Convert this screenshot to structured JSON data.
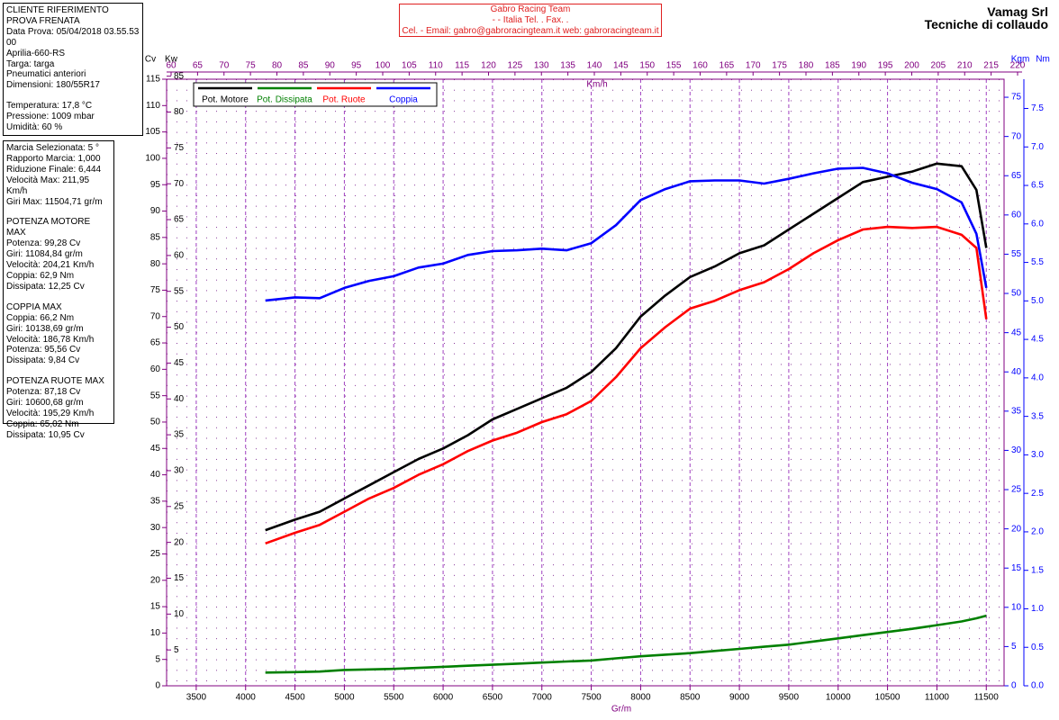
{
  "header": {
    "lines": [
      "Gabro Racing Team",
      "-  -  Italia Tel. . Fax. .",
      "Cel.  - Email: gabro@gabroracingteam.it web: gabroracingteam.it"
    ]
  },
  "brand": {
    "name": "Vamag Srl",
    "subtitle": "Tecniche di collaudo"
  },
  "info_panels": [
    [
      [
        "CLIENTE RIFERIMENTO",
        "PROVA FRENATA",
        "Data Prova: 05/04/2018 03.55.53",
        "00",
        "Aprilia-660-RS",
        "Targa:  targa",
        "Pneumatici anteriori",
        "Dimensioni: 180/55R17"
      ],
      [
        "Temperatura: 17,8 °C",
        "Pressione: 1009 mbar",
        "Umidità: 60 %"
      ]
    ],
    [
      [
        "Marcia Selezionata: 5 °",
        "Rapporto Marcia: 1,000",
        "Riduzione Finale: 6,444",
        "Velocità Max: 211,95 Km/h",
        "Giri Max: 11504,71 gr/m"
      ],
      [
        "POTENZA MOTORE MAX",
        "Potenza: 99,28 Cv",
        "Giri: 11084,84 gr/m",
        "Velocità: 204,21 Km/h",
        "Coppia: 62,9 Nm",
        "Dissipata: 12,25 Cv"
      ],
      [
        "COPPIA MAX",
        "Coppia: 66,2 Nm",
        "Giri: 10138,69 gr/m",
        "Velocità: 186,78 Km/h",
        "Potenza: 95,56 Cv",
        "Dissipata: 9,84 Cv"
      ],
      [
        "POTENZA RUOTE MAX",
        "Potenza: 87,18 Cv",
        "Giri: 10600,68 gr/m",
        "Velocità: 195,29 Km/h",
        "Coppia: 65,02 Nm",
        "Dissipata: 10,95 Cv"
      ]
    ]
  ],
  "chart_data": {
    "type": "line",
    "x_label": "Gr/m",
    "y_label": "Cv",
    "y2_label": "Nm",
    "grid": true,
    "x": [
      4200,
      4500,
      4750,
      5000,
      5250,
      5500,
      5750,
      6000,
      6250,
      6500,
      6750,
      7000,
      7250,
      7500,
      7750,
      8000,
      8250,
      8500,
      8750,
      9000,
      9250,
      9500,
      9750,
      10000,
      10250,
      10500,
      10750,
      11000,
      11250,
      11400,
      11500
    ],
    "xlim": [
      3200,
      11680
    ],
    "xticks": [
      3500,
      4000,
      4500,
      5000,
      5500,
      6000,
      6500,
      7000,
      7500,
      8000,
      8500,
      9000,
      9500,
      10000,
      10500,
      11000,
      11500
    ],
    "ylim": [
      0,
      115
    ],
    "yticks": [
      0,
      5,
      10,
      15,
      20,
      25,
      30,
      35,
      40,
      45,
      50,
      55,
      60,
      65,
      70,
      75,
      80,
      85,
      90,
      95,
      100,
      105,
      110,
      115
    ],
    "y2lim": [
      0,
      77.3
    ],
    "y2ticks": [
      0,
      5,
      10,
      15,
      20,
      25,
      30,
      35,
      40,
      45,
      50,
      55,
      60,
      65,
      70,
      75
    ],
    "kw_axis": {
      "label": "Kw",
      "lim": [
        0,
        84.58
      ],
      "ticks": [
        5,
        10,
        15,
        20,
        25,
        30,
        35,
        40,
        45,
        50,
        55,
        60,
        65,
        70,
        75,
        80,
        85
      ]
    },
    "kgm_axis": {
      "label": "Kgm",
      "lim": [
        0,
        7.88
      ],
      "ticks": [
        {
          "value": 0,
          "label": "0.0"
        },
        0.5,
        {
          "value": 1,
          "label": "1.0"
        },
        1.5,
        {
          "value": 2,
          "label": "2.0"
        },
        2.5,
        {
          "value": 3,
          "label": "3.0"
        },
        3.5,
        {
          "value": 4,
          "label": "4.0"
        },
        4.5,
        {
          "value": 5,
          "label": "5.0"
        },
        5.5,
        {
          "value": 6,
          "label": "6.0"
        },
        6.5,
        {
          "value": 7,
          "label": "7.0"
        },
        7.5
      ]
    },
    "kmh_axis": {
      "label": "Km/h",
      "lim": [
        60,
        220
      ],
      "ticks": [
        60,
        65,
        70,
        75,
        80,
        85,
        90,
        95,
        100,
        105,
        110,
        115,
        120,
        125,
        130,
        135,
        140,
        145,
        150,
        155,
        160,
        165,
        170,
        175,
        180,
        185,
        190,
        195,
        200,
        205,
        210,
        215,
        220
      ]
    },
    "series": [
      {
        "name": "Pot. Motore",
        "color": "#000000",
        "axis": "y",
        "values": [
          29.5,
          31.5,
          33,
          35.5,
          38,
          40.5,
          43,
          45,
          47.5,
          50.5,
          52.5,
          54.5,
          56.5,
          59.5,
          64,
          70,
          74,
          77.5,
          79.5,
          82,
          83.5,
          86.5,
          89.5,
          92.5,
          95.5,
          96.5,
          97.5,
          99,
          98.5,
          94,
          83
        ]
      },
      {
        "name": "Pot. Dissipata",
        "color": "#008000",
        "axis": "y",
        "values": [
          2.5,
          2.6,
          2.7,
          3.0,
          3.1,
          3.2,
          3.4,
          3.6,
          3.8,
          4.0,
          4.2,
          4.4,
          4.6,
          4.8,
          5.2,
          5.6,
          5.9,
          6.2,
          6.6,
          7.0,
          7.4,
          7.8,
          8.4,
          9.0,
          9.6,
          10.2,
          10.8,
          11.5,
          12.2,
          12.8,
          13.3
        ]
      },
      {
        "name": "Pot. Ruote",
        "color": "#ff0000",
        "axis": "y",
        "values": [
          27,
          29,
          30.5,
          33,
          35.5,
          37.5,
          40,
          42,
          44.5,
          46.5,
          48,
          50,
          51.5,
          54,
          58.5,
          64,
          68,
          71.5,
          73,
          75,
          76.5,
          79,
          82,
          84.5,
          86.5,
          87,
          86.8,
          87,
          85.5,
          83,
          69.5
        ]
      },
      {
        "name": "Coppia",
        "color": "#0000ff",
        "axis": "y2",
        "values": [
          49.1,
          49.5,
          49.4,
          50.7,
          51.6,
          52.2,
          53.3,
          53.8,
          54.9,
          55.4,
          55.5,
          55.7,
          55.5,
          56.4,
          58.7,
          61.9,
          63.3,
          64.3,
          64.4,
          64.4,
          64.0,
          64.6,
          65.3,
          65.9,
          66.0,
          65.3,
          64.1,
          63.3,
          61.6,
          57.6,
          50.7
        ]
      }
    ]
  }
}
